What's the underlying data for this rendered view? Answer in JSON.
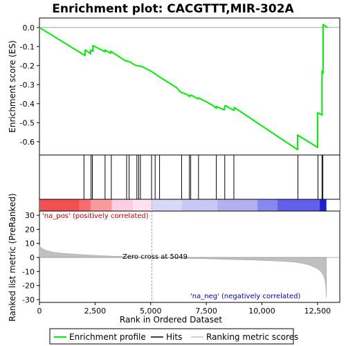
{
  "chart_data": {
    "type": "line",
    "title": "Enrichment plot: CACGTTT,MIR-302A",
    "xlabel": "Rank in Ordered Dataset",
    "xlim": [
      0,
      13500
    ],
    "x_ticks": [
      0,
      2500,
      5000,
      7500,
      10000,
      12500
    ],
    "x_tick_labels": [
      "0",
      "2,500",
      "5,000",
      "7,500",
      "10,000",
      "12,500"
    ],
    "dataset_size": 12900,
    "es_panel": {
      "ylabel": "Enrichment score (ES)",
      "ylim": [
        -0.67,
        0.05
      ],
      "y_ticks": [
        0.0,
        -0.1,
        -0.2,
        -0.3,
        -0.4,
        -0.5,
        -0.6
      ],
      "y_tick_labels": [
        "0.0",
        "-0.1",
        "-0.2",
        "-0.3",
        "-0.4",
        "-0.5",
        "-0.6"
      ],
      "series": [
        {
          "name": "Enrichment profile",
          "color": "#00ee00",
          "x": [
            0,
            2050,
            2050,
            2300,
            2300,
            2400,
            2400,
            2950,
            2950,
            3200,
            3200,
            3400,
            3900,
            3900,
            4050,
            4300,
            4350,
            4600,
            5050,
            5200,
            5400,
            6150,
            6350,
            6600,
            6750,
            6750,
            6900,
            7100,
            7150,
            7500,
            7800,
            7950,
            7950,
            8300,
            8350,
            8650,
            8750,
            8750,
            11600,
            11600,
            12500,
            12500,
            12700,
            12700,
            12750,
            12750,
            12950
          ],
          "y": [
            0.0,
            -0.148,
            -0.118,
            -0.138,
            -0.118,
            -0.125,
            -0.095,
            -0.128,
            -0.118,
            -0.135,
            -0.125,
            -0.14,
            -0.178,
            -0.175,
            -0.18,
            -0.198,
            -0.2,
            -0.205,
            -0.232,
            -0.245,
            -0.26,
            -0.315,
            -0.34,
            -0.35,
            -0.363,
            -0.355,
            -0.36,
            -0.375,
            -0.37,
            -0.39,
            -0.41,
            -0.425,
            -0.415,
            -0.433,
            -0.41,
            -0.43,
            -0.435,
            -0.42,
            -0.642,
            -0.565,
            -0.63,
            -0.448,
            -0.46,
            -0.23,
            -0.24,
            0.015,
            0.0
          ]
        }
      ],
      "baseline": 0.0
    },
    "hits_panel": {
      "legend_name": "Hits",
      "hit_positions": [
        2000,
        2320,
        2380,
        2950,
        3230,
        3920,
        4030,
        4380,
        4460,
        4540,
        5040,
        5200,
        5400,
        6390,
        6740,
        6800,
        7150,
        7950,
        8330,
        8740,
        11620,
        12520,
        12700,
        12740
      ]
    },
    "metric_panel": {
      "ylabel": "Ranked list metric (PreRanked)",
      "ylim": [
        -32,
        33
      ],
      "y_ticks": [
        30,
        20,
        10,
        0,
        -10,
        -20,
        -30
      ],
      "y_tick_labels": [
        "30",
        "20",
        "10",
        "0",
        "-10",
        "-20",
        "-30"
      ],
      "legend_name": "Ranking metric scores",
      "fill_color": "#c0c0c0",
      "x": [
        0,
        100,
        300,
        600,
        1000,
        1500,
        2000,
        2500,
        3000,
        3500,
        4000,
        4500,
        5049,
        5500,
        6000,
        6500,
        7000,
        7500,
        8000,
        8500,
        9000,
        9500,
        10000,
        10500,
        11000,
        11500,
        11800,
        12100,
        12300,
        12500,
        12650,
        12750,
        12820,
        12870,
        12900
      ],
      "y": [
        8.5,
        6.5,
        5.0,
        3.8,
        3.0,
        2.4,
        1.9,
        1.5,
        1.1,
        0.8,
        0.5,
        0.25,
        0.0,
        -0.2,
        -0.4,
        -0.6,
        -0.8,
        -1.0,
        -1.2,
        -1.4,
        -1.6,
        -1.8,
        -2.1,
        -2.4,
        -2.8,
        -3.4,
        -4.2,
        -5.2,
        -6.5,
        -8.0,
        -10.0,
        -12.5,
        -15.0,
        -20.0,
        -29.0
      ],
      "zero_cross_label": "Zero cross at 5049",
      "zero_cross": 5049,
      "pos_label": "'na_pos' (positively correlated)",
      "neg_label": "'na_neg' (negatively correlated)",
      "pos_color": "#cc0000",
      "neg_color": "#0000cc"
    },
    "legend": {
      "placement": "bottom",
      "entries": [
        "Enrichment profile",
        "Hits",
        "Ranking metric scores"
      ]
    },
    "colorbar": {
      "colors": [
        "#f05050",
        "#f56c6c",
        "#f99a9a",
        "#fccde6",
        "#ffe0f0",
        "#d8d8f8",
        "#c8c8f5",
        "#b0b0f2",
        "#8888f0",
        "#6060e8",
        "#2020cc"
      ],
      "bounds": [
        0,
        1800,
        2300,
        3250,
        4200,
        5049,
        6400,
        8000,
        9800,
        10700,
        12600,
        12950
      ]
    }
  }
}
